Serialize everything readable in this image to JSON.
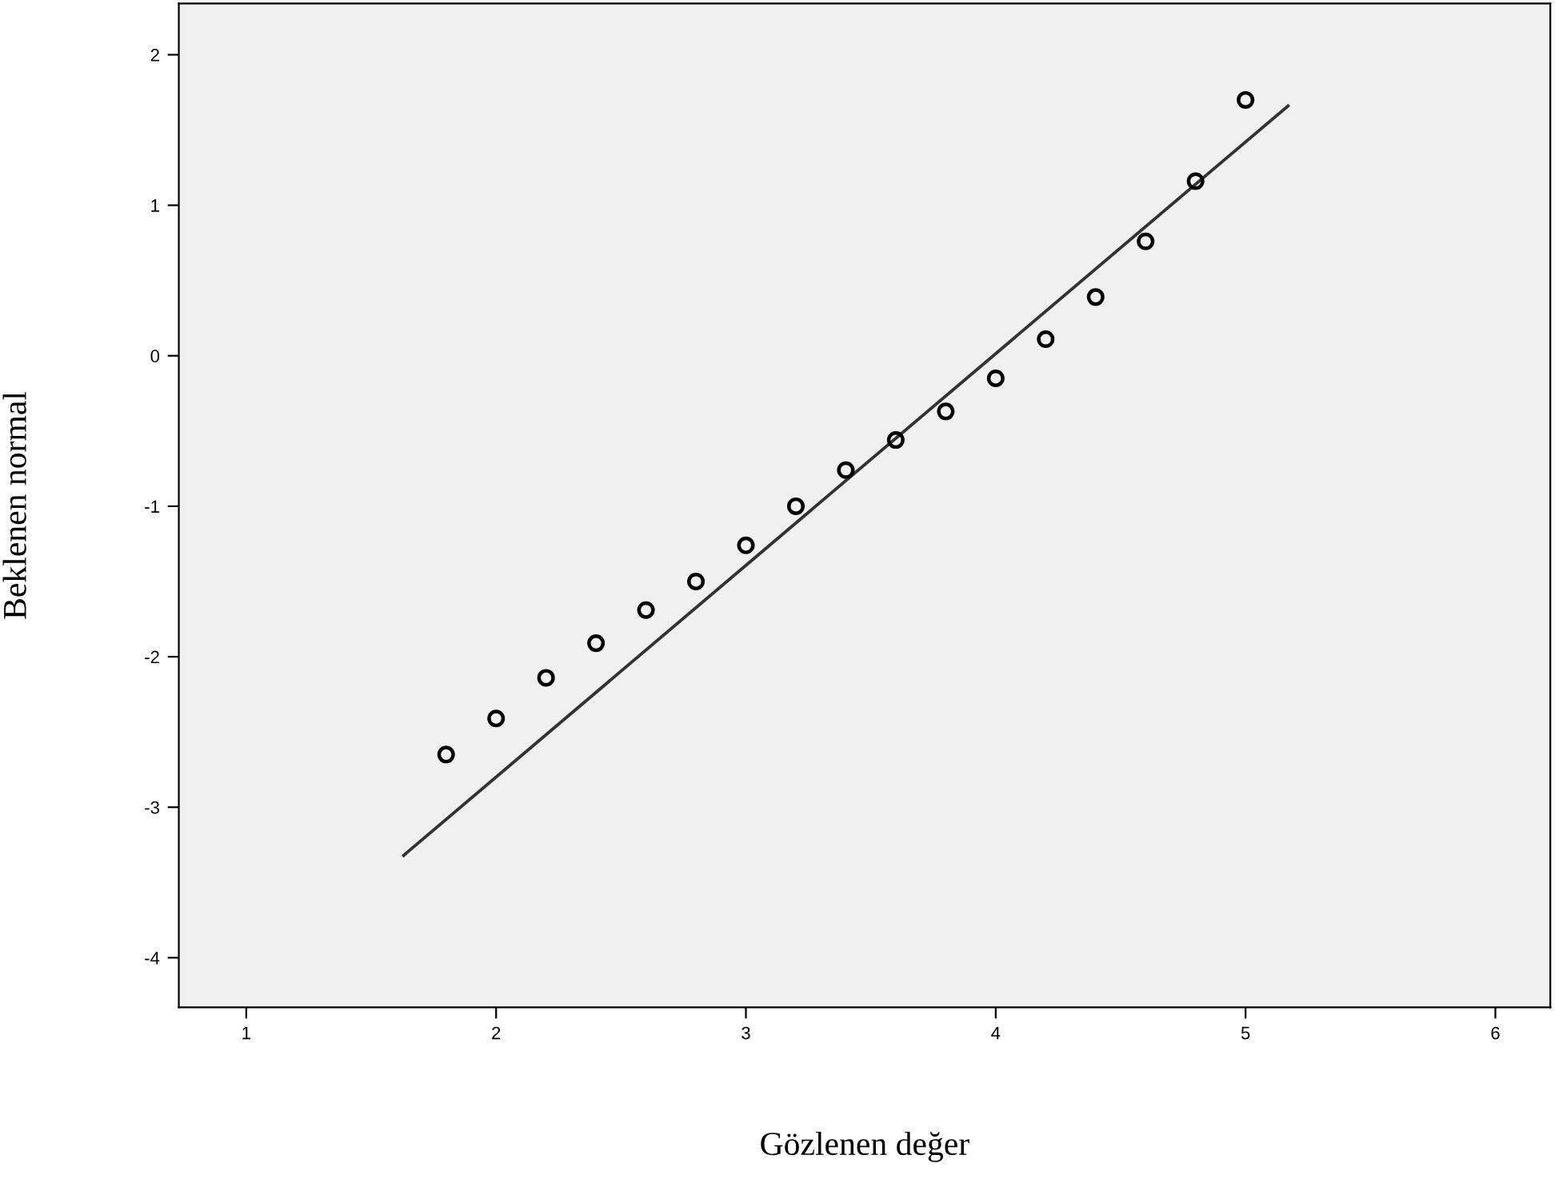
{
  "chart_data": {
    "type": "scatter",
    "xlabel": "Gözlenen değer",
    "ylabel": "Beklenen normal",
    "xlim": [
      0.73,
      6.22
    ],
    "ylim": [
      -4.33,
      2.34
    ],
    "xticks": [
      1,
      2,
      3,
      4,
      5,
      6
    ],
    "yticks": [
      -4,
      -3,
      -2,
      -1,
      0,
      1,
      2
    ],
    "grid": false,
    "legend": false,
    "series": [
      {
        "color": "#000000",
        "marker": "circle",
        "x": [
          1.8,
          2.0,
          2.2,
          2.4,
          2.6,
          2.8,
          3.0,
          3.2,
          3.4,
          3.6,
          3.8,
          4.0,
          4.2,
          4.4,
          4.6,
          4.8,
          5.0
        ],
        "values": [
          -2.65,
          -2.41,
          -2.14,
          -1.91,
          -1.69,
          -1.5,
          -1.26,
          -1.0,
          -0.76,
          -0.56,
          -0.37,
          -0.15,
          0.11,
          0.39,
          0.76,
          1.16,
          1.7
        ]
      },
      {
        "type": "line",
        "marker": "none",
        "color": "#333333",
        "x": [
          1.63,
          5.17
        ],
        "values": [
          -3.32,
          1.66
        ]
      }
    ]
  }
}
